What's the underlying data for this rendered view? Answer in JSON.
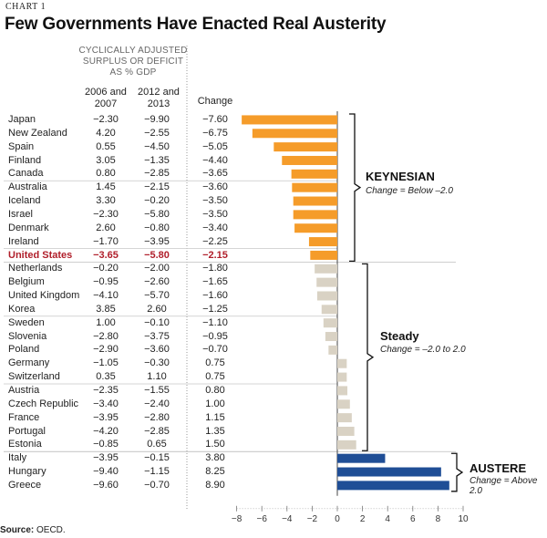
{
  "kicker": "CHART 1",
  "title": "Few Governments Have Enacted Real Austerity",
  "group_header": "CYCLICALLY ADJUSTED SURPLUS OR DEFICIT AS % GDP",
  "col1_header": "2006 and 2007",
  "col2_header": "2012 and 2013",
  "col3_header": "Change",
  "source_label": "Source:",
  "source_text": "OECD.",
  "colors": {
    "keynesian": "#f59c2a",
    "steady": "#d9d2c4",
    "austere": "#1f4e96",
    "highlight": "#b01e2a"
  },
  "annotations": [
    {
      "title": "KEYNESIAN",
      "subtitle": "Change = Below –2.0"
    },
    {
      "title": "Steady",
      "subtitle": "Change = –2.0 to 2.0"
    },
    {
      "title": "AUSTERE",
      "subtitle": "Change = Above 2.0"
    }
  ],
  "chart_data": {
    "type": "bar",
    "orientation": "horizontal",
    "xlim": [
      -8,
      10
    ],
    "x_ticks": [
      "−8",
      "−6",
      "−4",
      "−2",
      "0",
      "2",
      "4",
      "6",
      "8",
      "10"
    ],
    "highlight_row": "United States",
    "rows": [
      {
        "country": "Japan",
        "v1": "−2.30",
        "v2": "−9.90",
        "change": -7.6,
        "change_label": "−7.60",
        "group": "keynesian"
      },
      {
        "country": "New Zealand",
        "v1": "4.20",
        "v2": "−2.55",
        "change": -6.75,
        "change_label": "−6.75",
        "group": "keynesian"
      },
      {
        "country": "Spain",
        "v1": "0.55",
        "v2": "−4.50",
        "change": -5.05,
        "change_label": "−5.05",
        "group": "keynesian"
      },
      {
        "country": "Finland",
        "v1": "3.05",
        "v2": "−1.35",
        "change": -4.4,
        "change_label": "−4.40",
        "group": "keynesian"
      },
      {
        "country": "Canada",
        "v1": "0.80",
        "v2": "−2.85",
        "change": -3.65,
        "change_label": "−3.65",
        "group": "keynesian"
      },
      {
        "country": "Australia",
        "v1": "1.45",
        "v2": "−2.15",
        "change": -3.6,
        "change_label": "−3.60",
        "group": "keynesian"
      },
      {
        "country": "Iceland",
        "v1": "3.30",
        "v2": "−0.20",
        "change": -3.5,
        "change_label": "−3.50",
        "group": "keynesian"
      },
      {
        "country": "Israel",
        "v1": "−2.30",
        "v2": "−5.80",
        "change": -3.5,
        "change_label": "−3.50",
        "group": "keynesian"
      },
      {
        "country": "Denmark",
        "v1": "2.60",
        "v2": "−0.80",
        "change": -3.4,
        "change_label": "−3.40",
        "group": "keynesian"
      },
      {
        "country": "Ireland",
        "v1": "−1.70",
        "v2": "−3.95",
        "change": -2.25,
        "change_label": "−2.25",
        "group": "keynesian"
      },
      {
        "country": "United States",
        "v1": "−3.65",
        "v2": "−5.80",
        "change": -2.15,
        "change_label": "−2.15",
        "group": "keynesian"
      },
      {
        "country": "Netherlands",
        "v1": "−0.20",
        "v2": "−2.00",
        "change": -1.8,
        "change_label": "−1.80",
        "group": "steady"
      },
      {
        "country": "Belgium",
        "v1": "−0.95",
        "v2": "−2.60",
        "change": -1.65,
        "change_label": "−1.65",
        "group": "steady"
      },
      {
        "country": "United Kingdom",
        "v1": "−4.10",
        "v2": "−5.70",
        "change": -1.6,
        "change_label": "−1.60",
        "group": "steady"
      },
      {
        "country": "Korea",
        "v1": "3.85",
        "v2": "2.60",
        "change": -1.25,
        "change_label": "−1.25",
        "group": "steady"
      },
      {
        "country": "Sweden",
        "v1": "1.00",
        "v2": "−0.10",
        "change": -1.1,
        "change_label": "−1.10",
        "group": "steady"
      },
      {
        "country": "Slovenia",
        "v1": "−2.80",
        "v2": "−3.75",
        "change": -0.95,
        "change_label": "−0.95",
        "group": "steady"
      },
      {
        "country": "Poland",
        "v1": "−2.90",
        "v2": "−3.60",
        "change": -0.7,
        "change_label": "−0.70",
        "group": "steady"
      },
      {
        "country": "Germany",
        "v1": "−1.05",
        "v2": "−0.30",
        "change": 0.75,
        "change_label": "0.75",
        "group": "steady"
      },
      {
        "country": "Switzerland",
        "v1": "0.35",
        "v2": "1.10",
        "change": 0.75,
        "change_label": "0.75",
        "group": "steady"
      },
      {
        "country": "Austria",
        "v1": "−2.35",
        "v2": "−1.55",
        "change": 0.8,
        "change_label": "0.80",
        "group": "steady"
      },
      {
        "country": "Czech Republic",
        "v1": "−3.40",
        "v2": "−2.40",
        "change": 1.0,
        "change_label": "1.00",
        "group": "steady"
      },
      {
        "country": "France",
        "v1": "−3.95",
        "v2": "−2.80",
        "change": 1.15,
        "change_label": "1.15",
        "group": "steady"
      },
      {
        "country": "Portugal",
        "v1": "−4.20",
        "v2": "−2.85",
        "change": 1.35,
        "change_label": "1.35",
        "group": "steady"
      },
      {
        "country": "Estonia",
        "v1": "−0.85",
        "v2": "0.65",
        "change": 1.5,
        "change_label": "1.50",
        "group": "steady"
      },
      {
        "country": "Italy",
        "v1": "−3.95",
        "v2": "−0.15",
        "change": 3.8,
        "change_label": "3.80",
        "group": "austere"
      },
      {
        "country": "Hungary",
        "v1": "−9.40",
        "v2": "−1.15",
        "change": 8.25,
        "change_label": "8.25",
        "group": "austere"
      },
      {
        "country": "Greece",
        "v1": "−9.60",
        "v2": "−0.70",
        "change": 8.9,
        "change_label": "8.90",
        "group": "austere"
      }
    ]
  }
}
